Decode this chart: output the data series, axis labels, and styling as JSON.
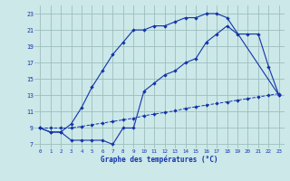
{
  "title": "Graphe des températures (°C)",
  "bg_color": "#cce8e8",
  "grid_color": "#9dbfbf",
  "line_color": "#1133aa",
  "line1_x": [
    0,
    1,
    2,
    3,
    4,
    5,
    6,
    7,
    8,
    9,
    10,
    11,
    12,
    13,
    14,
    15,
    16,
    17,
    18,
    23
  ],
  "line1_y": [
    9,
    8.5,
    8.5,
    9.5,
    11.5,
    14,
    16,
    18,
    19.5,
    21,
    21,
    21.5,
    21.5,
    22,
    22.5,
    22.5,
    23,
    23,
    22.5,
    13
  ],
  "line2_x": [
    0,
    1,
    2,
    3,
    4,
    5,
    6,
    7,
    8,
    9,
    10,
    11,
    12,
    13,
    14,
    15,
    16,
    17,
    18,
    19,
    20,
    21,
    22,
    23
  ],
  "line2_y": [
    9,
    8.5,
    8.5,
    7.5,
    7.5,
    7.5,
    7.5,
    7.0,
    9.0,
    9.0,
    13.5,
    14.5,
    15.5,
    16.0,
    17.0,
    17.5,
    19.5,
    20.5,
    21.5,
    20.5,
    20.5,
    20.5,
    16.5,
    13
  ],
  "line3_x": [
    0,
    1,
    2,
    3,
    4,
    5,
    6,
    7,
    8,
    9,
    10,
    11,
    12,
    13,
    14,
    15,
    16,
    17,
    18,
    19,
    20,
    21,
    22,
    23
  ],
  "line3_y": [
    9,
    9,
    9,
    9,
    9.2,
    9.4,
    9.6,
    9.8,
    10.0,
    10.2,
    10.5,
    10.7,
    10.9,
    11.1,
    11.4,
    11.6,
    11.8,
    12.0,
    12.2,
    12.4,
    12.6,
    12.8,
    13.0,
    13.2
  ],
  "xlim": [
    -0.5,
    23.5
  ],
  "ylim": [
    6.5,
    24
  ],
  "xticks": [
    0,
    1,
    2,
    3,
    4,
    5,
    6,
    7,
    8,
    9,
    10,
    11,
    12,
    13,
    14,
    15,
    16,
    17,
    18,
    19,
    20,
    21,
    22,
    23
  ],
  "yticks": [
    7,
    9,
    11,
    13,
    15,
    17,
    19,
    21,
    23
  ]
}
